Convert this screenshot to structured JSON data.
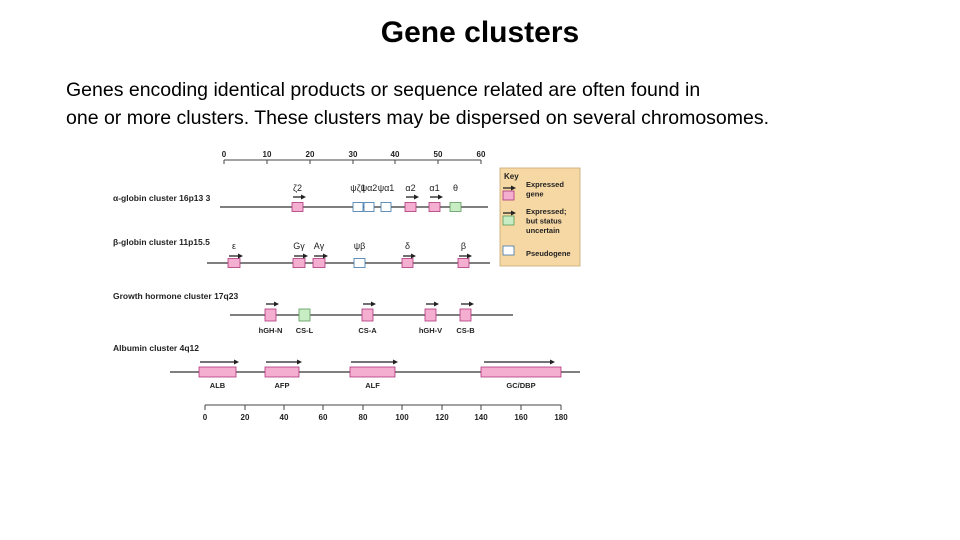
{
  "slide": {
    "title": "Gene clusters",
    "body_lines": [
      "Genes encoding identical products or sequence related are often found in",
      "one or more clusters. These clusters may be dispersed on several chromosomes."
    ]
  },
  "colors": {
    "expressed": "#f4aed0",
    "uncertain": "#c8ecc4",
    "pseudogene": "#ffffff",
    "gene_stroke": "#b0357a",
    "key_bg": "#f6d8a4"
  },
  "figure": {
    "top_axis": {
      "ticks": [
        "0",
        "10",
        "20",
        "30",
        "40",
        "50",
        "60"
      ]
    },
    "bottom_axis": {
      "ticks": [
        "0",
        "20",
        "40",
        "60",
        "80",
        "100",
        "120",
        "140",
        "160",
        "180"
      ]
    },
    "clusters": [
      {
        "label": "α-globin cluster 16p13 3",
        "genes": [
          {
            "name": "ζ2",
            "type": "expressed"
          },
          {
            "name": "ψζ1",
            "type": "pseudogene"
          },
          {
            "name": "ψα2",
            "type": "pseudogene"
          },
          {
            "name": "ψα1",
            "type": "pseudogene"
          },
          {
            "name": "α2",
            "type": "expressed"
          },
          {
            "name": "α1",
            "type": "expressed"
          },
          {
            "name": "θ",
            "type": "uncertain"
          }
        ]
      },
      {
        "label": "β-globin cluster 11p15.5",
        "genes": [
          {
            "name": "ε",
            "type": "expressed"
          },
          {
            "name": "Gγ",
            "type": "expressed"
          },
          {
            "name": "Aγ",
            "type": "expressed"
          },
          {
            "name": "ψβ",
            "type": "pseudogene"
          },
          {
            "name": "δ",
            "type": "expressed"
          },
          {
            "name": "β",
            "type": "expressed"
          }
        ]
      },
      {
        "label": "Growth hormone cluster 17q23",
        "genes": [
          {
            "name": "hGH-N",
            "type": "expressed"
          },
          {
            "name": "CS-L",
            "type": "uncertain"
          },
          {
            "name": "CS-A",
            "type": "expressed"
          },
          {
            "name": "hGH-V",
            "type": "expressed"
          },
          {
            "name": "CS-B",
            "type": "expressed"
          }
        ]
      },
      {
        "label": "Albumin cluster 4q12",
        "genes": [
          {
            "name": "ALB",
            "type": "expressed"
          },
          {
            "name": "AFP",
            "type": "expressed"
          },
          {
            "name": "ALF",
            "type": "expressed"
          },
          {
            "name": "GC/DBP",
            "type": "expressed"
          }
        ]
      }
    ],
    "key": {
      "title": "Key",
      "items": [
        {
          "label_lines": [
            "Expressed",
            "gene"
          ],
          "type": "expressed"
        },
        {
          "label_lines": [
            "Expressed;",
            "but status",
            "uncertain"
          ],
          "type": "uncertain"
        },
        {
          "label_lines": [
            "Pseudogene"
          ],
          "type": "pseudogene"
        }
      ]
    }
  }
}
